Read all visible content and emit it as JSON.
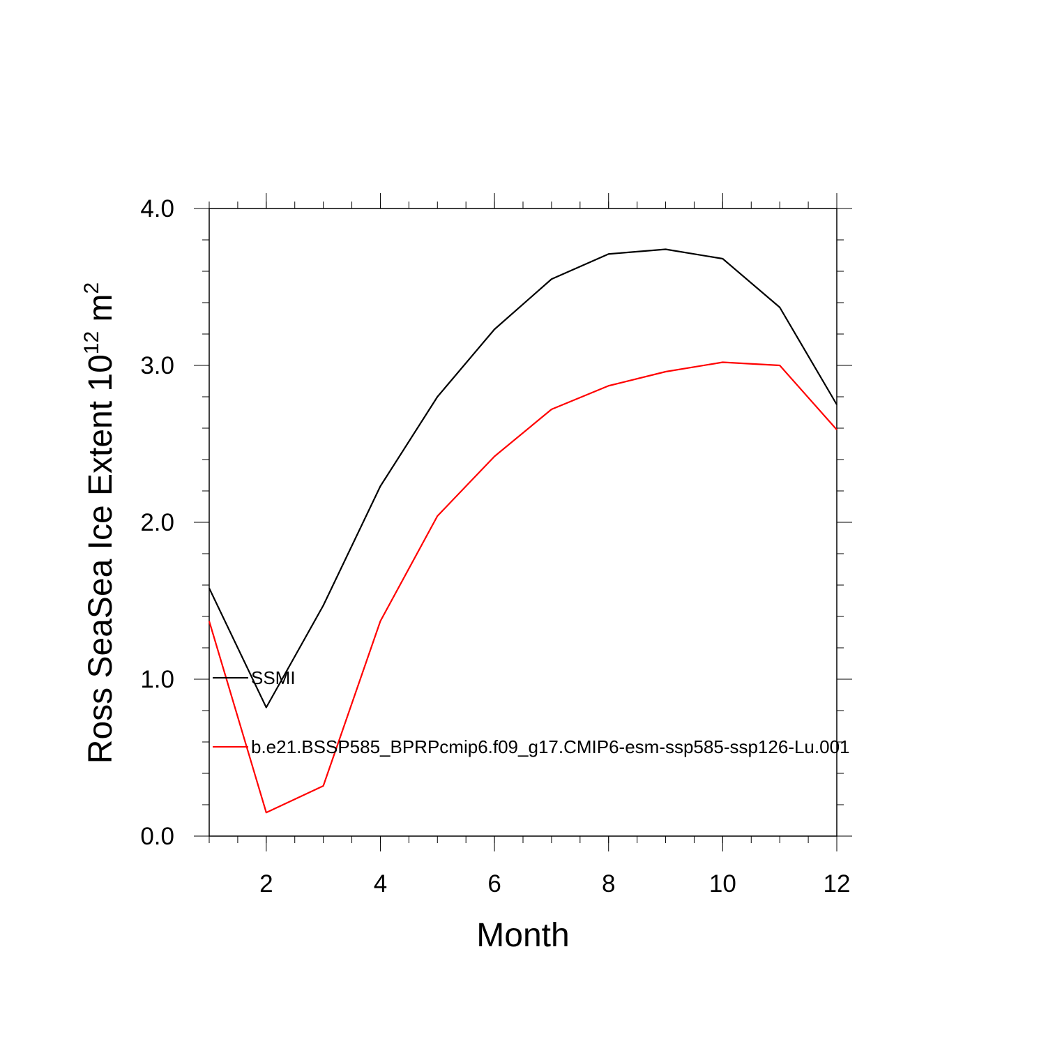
{
  "chart_data": {
    "type": "line",
    "xlabel": "Month",
    "ylabel": {
      "base": "Ross SeaSea Ice Extent 10",
      "exp1": "12",
      "unit": " m",
      "exp2": "2"
    },
    "xlim": [
      1,
      12
    ],
    "ylim": [
      0,
      4
    ],
    "x_ticks": [
      2,
      4,
      6,
      8,
      10,
      12
    ],
    "y_ticks": [
      0,
      1,
      2,
      3,
      4
    ],
    "y_tick_labels": [
      "0.0",
      "1.0",
      "2.0",
      "3.0",
      "4.0"
    ],
    "grid": false,
    "legend_position": "left, inside plot",
    "x": [
      1,
      2,
      3,
      4,
      5,
      6,
      7,
      8,
      9,
      10,
      11,
      12
    ],
    "series": [
      {
        "name": "SSMI",
        "color": "#000000",
        "values": [
          1.58,
          0.82,
          1.47,
          2.23,
          2.8,
          3.23,
          3.55,
          3.71,
          3.74,
          3.68,
          3.37,
          2.75
        ]
      },
      {
        "name": "b.e21.BSSP585_BPRPcmip6.f09_g17.CMIP6-esm-ssp585-ssp126-Lu.001",
        "color": "#ff0000",
        "values": [
          1.37,
          0.15,
          0.32,
          1.37,
          2.04,
          2.42,
          2.72,
          2.87,
          2.96,
          3.02,
          3.0,
          2.59
        ]
      }
    ]
  }
}
